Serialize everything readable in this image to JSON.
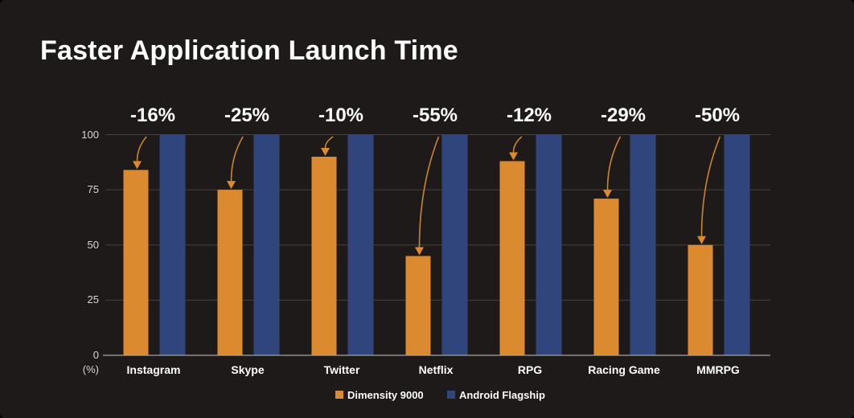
{
  "title": "Faster Application Launch Time",
  "colors": {
    "background": "#1e1a19",
    "orange": "#DC8A30",
    "blue": "#31457D",
    "grid": "#454140",
    "axis": "#A5A2A0",
    "arrow": "#C9862F",
    "text": "#FFFFFF",
    "tick_text": "#D9D6D3"
  },
  "chart_data": {
    "type": "bar",
    "title": "Faster Application Launch Time",
    "categories": [
      "Instagram",
      "Skype",
      "Twitter",
      "Netflix",
      "RPG",
      "Racing Game",
      "MMRPG"
    ],
    "series": [
      {
        "name": "Dimensity 9000",
        "color": "#DC8A30",
        "values": [
          84,
          75,
          90,
          45,
          88,
          71,
          50
        ]
      },
      {
        "name": "Android Flagship",
        "color": "#31457D",
        "values": [
          100,
          100,
          100,
          100,
          100,
          100,
          100
        ]
      }
    ],
    "annotations": [
      "-16%",
      "-25%",
      "-10%",
      "-55%",
      "-12%",
      "-29%",
      "-50%"
    ],
    "ylabel": "(%)",
    "yticks": [
      0,
      25,
      50,
      75,
      100
    ],
    "ylim": [
      0,
      100
    ],
    "grid": true,
    "legend_position": "bottom"
  }
}
